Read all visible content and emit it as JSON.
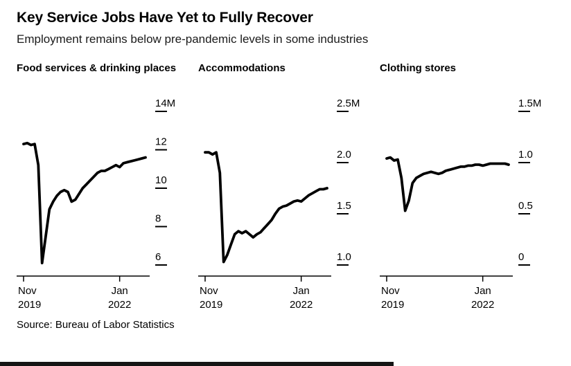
{
  "header": {
    "title": "Key Service Jobs Have Yet to Fully Recover",
    "subtitle": "Employment remains below pre-pandemic levels in some industries"
  },
  "footer": {
    "source": "Source: Bureau of Labor Statistics"
  },
  "style": {
    "background": "#ffffff",
    "text_color": "#000000",
    "line_color": "#000000",
    "axis_color": "#000000"
  },
  "chart_data": {
    "type": "line",
    "layout": "small-multiples",
    "x_frequency": "monthly",
    "categories": [
      "Nov 2019",
      "Dec 2019",
      "Jan 2020",
      "Feb 2020",
      "Mar 2020",
      "Apr 2020",
      "May 2020",
      "Jun 2020",
      "Jul 2020",
      "Aug 2020",
      "Sep 2020",
      "Oct 2020",
      "Nov 2020",
      "Dec 2020",
      "Jan 2021",
      "Feb 2021",
      "Mar 2021",
      "Apr 2021",
      "May 2021",
      "Jun 2021",
      "Jul 2021",
      "Aug 2021",
      "Sep 2021",
      "Oct 2021",
      "Nov 2021",
      "Dec 2021",
      "Jan 2022",
      "Feb 2022",
      "Mar 2022",
      "Apr 2022",
      "May 2022",
      "Jun 2022",
      "Jul 2022",
      "Aug 2022"
    ],
    "x_ticks": [
      {
        "category": "Nov 2019",
        "line1": "Nov",
        "line2": "2019"
      },
      {
        "category": "Jan 2022",
        "line1": "Jan",
        "line2": "2022"
      }
    ],
    "panels": [
      {
        "title": "Food services & drinking places",
        "unit": "millions of jobs",
        "ylim": [
          6,
          14
        ],
        "yticks": [
          6,
          8,
          10,
          12,
          14
        ],
        "ytick_labels": [
          "6",
          "8",
          "10",
          "12",
          "14M"
        ],
        "values": [
          12.3,
          12.35,
          12.25,
          12.3,
          11.2,
          6.1,
          7.5,
          8.9,
          9.3,
          9.6,
          9.8,
          9.9,
          9.8,
          9.3,
          9.4,
          9.7,
          10.0,
          10.2,
          10.4,
          10.6,
          10.8,
          10.9,
          10.9,
          11.0,
          11.1,
          11.2,
          11.1,
          11.3,
          11.35,
          11.4,
          11.45,
          11.5,
          11.55,
          11.6
        ]
      },
      {
        "title": "Accommodations",
        "unit": "millions of jobs",
        "ylim": [
          1.0,
          2.5
        ],
        "yticks": [
          1.0,
          1.5,
          2.0,
          2.5
        ],
        "ytick_labels": [
          "1.0",
          "1.5",
          "2.0",
          "2.5M"
        ],
        "values": [
          2.1,
          2.1,
          2.08,
          2.1,
          1.9,
          1.03,
          1.1,
          1.2,
          1.3,
          1.33,
          1.31,
          1.33,
          1.3,
          1.27,
          1.3,
          1.32,
          1.36,
          1.4,
          1.44,
          1.5,
          1.55,
          1.57,
          1.58,
          1.6,
          1.62,
          1.63,
          1.62,
          1.65,
          1.68,
          1.7,
          1.72,
          1.74,
          1.74,
          1.75
        ]
      },
      {
        "title": "Clothing stores",
        "unit": "millions of jobs",
        "ylim": [
          0,
          1.5
        ],
        "yticks": [
          0,
          0.5,
          1.0,
          1.5
        ],
        "ytick_labels": [
          "0",
          "0.5",
          "1.0",
          "1.5M"
        ],
        "values": [
          1.04,
          1.05,
          1.02,
          1.03,
          0.85,
          0.53,
          0.63,
          0.8,
          0.85,
          0.87,
          0.89,
          0.9,
          0.91,
          0.9,
          0.89,
          0.9,
          0.92,
          0.93,
          0.94,
          0.95,
          0.96,
          0.96,
          0.97,
          0.97,
          0.98,
          0.98,
          0.97,
          0.98,
          0.99,
          0.99,
          0.99,
          0.99,
          0.99,
          0.98
        ]
      }
    ]
  }
}
